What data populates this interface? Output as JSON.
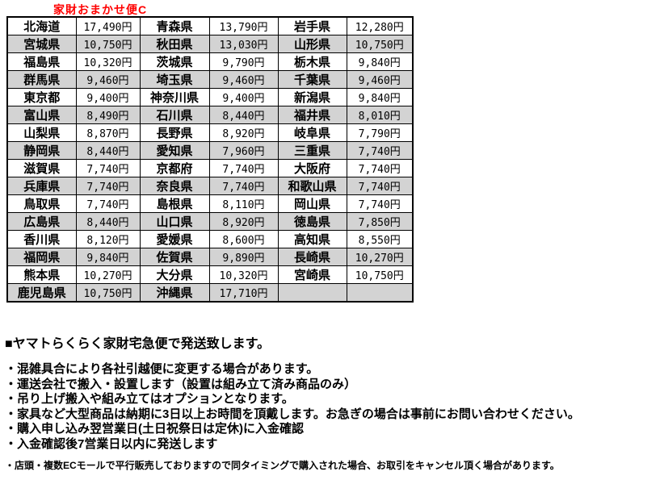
{
  "title": "家財おまかせ便C",
  "table": {
    "rows": [
      [
        "北海道",
        "17,490円",
        "青森県",
        "13,790円",
        "岩手県",
        "12,280円"
      ],
      [
        "宮城県",
        "10,750円",
        "秋田県",
        "13,030円",
        "山形県",
        "10,750円"
      ],
      [
        "福島県",
        "10,320円",
        "茨城県",
        "9,790円",
        "栃木県",
        "9,840円"
      ],
      [
        "群馬県",
        "9,460円",
        "埼玉県",
        "9,460円",
        "千葉県",
        "9,460円"
      ],
      [
        "東京都",
        "9,400円",
        "神奈川県",
        "9,400円",
        "新潟県",
        "9,840円"
      ],
      [
        "富山県",
        "8,490円",
        "石川県",
        "8,440円",
        "福井県",
        "8,010円"
      ],
      [
        "山梨県",
        "8,870円",
        "長野県",
        "8,920円",
        "岐阜県",
        "7,790円"
      ],
      [
        "静岡県",
        "8,440円",
        "愛知県",
        "7,960円",
        "三重県",
        "7,740円"
      ],
      [
        "滋賀県",
        "7,740円",
        "京都府",
        "7,740円",
        "大阪府",
        "7,740円"
      ],
      [
        "兵庫県",
        "7,740円",
        "奈良県",
        "7,740円",
        "和歌山県",
        "7,740円"
      ],
      [
        "鳥取県",
        "7,740円",
        "島根県",
        "8,110円",
        "岡山県",
        "7,740円"
      ],
      [
        "広島県",
        "8,440円",
        "山口県",
        "8,920円",
        "徳島県",
        "7,850円"
      ],
      [
        "香川県",
        "8,120円",
        "愛媛県",
        "8,600円",
        "高知県",
        "8,550円"
      ],
      [
        "福岡県",
        "9,840円",
        "佐賀県",
        "9,890円",
        "長崎県",
        "10,270円"
      ],
      [
        "熊本県",
        "10,270円",
        "大分県",
        "10,320円",
        "宮崎県",
        "10,750円"
      ],
      [
        "鹿児島県",
        "10,750円",
        "沖縄県",
        "17,710円",
        "",
        ""
      ]
    ]
  },
  "notes": {
    "heading": "■ヤマトらくらく家財宅急便で発送致します。",
    "bullets": [
      "・混雑具合により各社引越便に変更する場合があります。",
      "・運送会社で搬入・設置します（設置は組み立て済み商品のみ）",
      "・吊り上げ搬入や組み立てはオプションとなります。",
      "・家具など大型商品は納期に3日以上お時間を頂戴します。お急ぎの場合は事前にお問い合わせください。",
      "・購入申し込み翌営業日(土日祝祭日は定休)に入金確認",
      "・入金確認後7営業日以内に発送します"
    ],
    "small_note": "・店頭・複数ECモールで平行販売しておりますので同タイミングで購入された場合、お取引をキャンセル頂く場合があります。"
  },
  "colors": {
    "title_red": "#ff0000",
    "row_stripe_gray": "#d3d3d3",
    "border_black": "#000000"
  }
}
